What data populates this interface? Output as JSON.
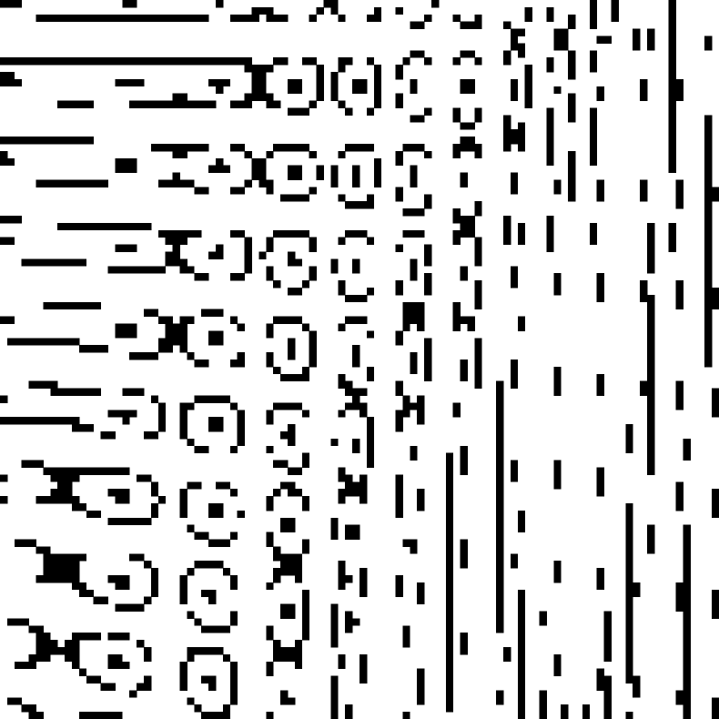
{
  "image": {
    "kind": "binary pixel pattern",
    "foreground_color": "#000000",
    "background_color": "#ffffff",
    "description_text": ""
  }
}
